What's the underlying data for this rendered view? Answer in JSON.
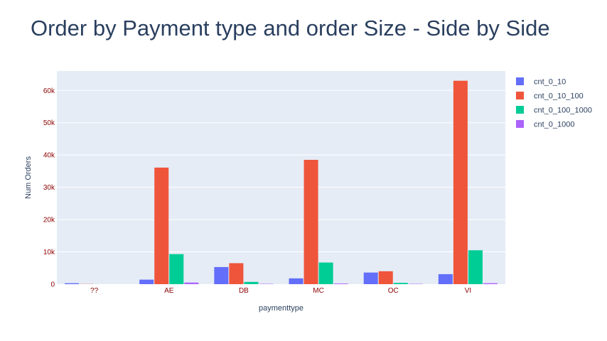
{
  "chart_data": {
    "type": "bar",
    "title": "Order by Payment type and order Size - Side by Side",
    "xlabel": "paymenttype",
    "ylabel": "Num Orders",
    "categories": [
      "??",
      "AE",
      "DB",
      "MC",
      "OC",
      "VI"
    ],
    "ylim": [
      0,
      66000
    ],
    "yticks": [
      0,
      10000,
      20000,
      30000,
      40000,
      50000,
      60000
    ],
    "ytick_labels": [
      "0",
      "10k",
      "20k",
      "30k",
      "40k",
      "50k",
      "60k"
    ],
    "grid": true,
    "legend_position": "top-right",
    "series": [
      {
        "name": "cnt_0_10",
        "color": "#636efa",
        "values": [
          300,
          1400,
          5300,
          1800,
          3600,
          3100
        ]
      },
      {
        "name": "cnt_0_10_100",
        "color": "#ef553b",
        "values": [
          50,
          36100,
          6500,
          38500,
          4000,
          63000
        ]
      },
      {
        "name": "cnt_0_100_1000",
        "color": "#00cc96",
        "values": [
          0,
          9300,
          700,
          6700,
          400,
          10500
        ]
      },
      {
        "name": "cnt_0_1000",
        "color": "#ab63fa",
        "values": [
          0,
          500,
          100,
          200,
          100,
          300
        ]
      }
    ]
  }
}
